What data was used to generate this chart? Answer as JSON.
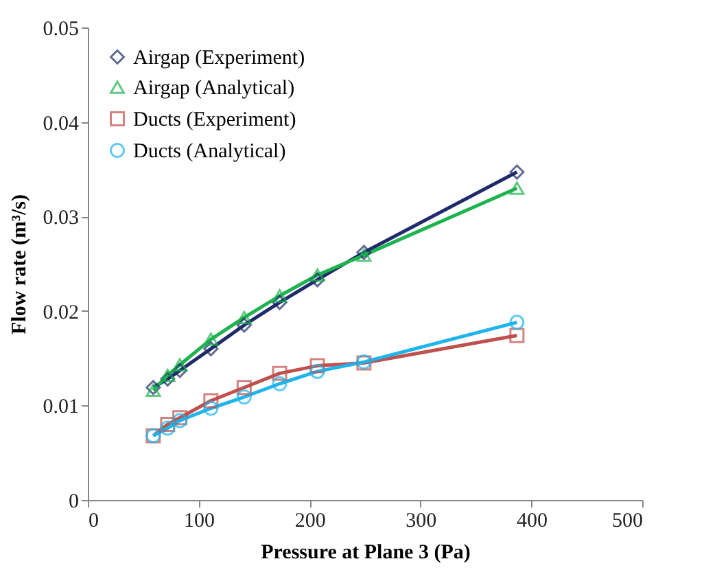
{
  "chart_data": {
    "type": "line",
    "xlabel": "Pressure at Plane 3 (Pa)",
    "ylabel": "Flow rate (m³/s)",
    "x": [
      59,
      72,
      83,
      111,
      141,
      173,
      207,
      249,
      387
    ],
    "xlim": [
      0,
      500
    ],
    "xticks": [
      0,
      100,
      200,
      300,
      400,
      500
    ],
    "ylim": [
      0,
      0.05
    ],
    "yticks": [
      0,
      0.01,
      0.02,
      0.03,
      0.04,
      0.05
    ],
    "grid": false,
    "legend": "top left",
    "series": [
      {
        "name": "Airgap (Experiment)",
        "color": "#1f2a6b",
        "marker": "diamond",
        "values": [
          0.0119,
          0.0128,
          0.0137,
          0.016,
          0.0185,
          0.0209,
          0.0233,
          0.0262,
          0.0347
        ]
      },
      {
        "name": "Airgap (Analytical)",
        "color": "#1db34f",
        "marker": "triangle",
        "values": [
          0.0116,
          0.0132,
          0.0143,
          0.017,
          0.0193,
          0.0216,
          0.0238,
          0.0259,
          0.033
        ]
      },
      {
        "name": "Ducts (Experiment)",
        "color": "#c0504d",
        "marker": "square",
        "values": [
          0.0068,
          0.008,
          0.0087,
          0.0105,
          0.0119,
          0.0134,
          0.0142,
          0.0145,
          0.0174
        ]
      },
      {
        "name": "Ducts (Analytical)",
        "color": "#1fb4ec",
        "marker": "circle",
        "values": [
          0.0068,
          0.0076,
          0.0084,
          0.0097,
          0.0109,
          0.0123,
          0.0136,
          0.0146,
          0.0188
        ]
      }
    ]
  }
}
